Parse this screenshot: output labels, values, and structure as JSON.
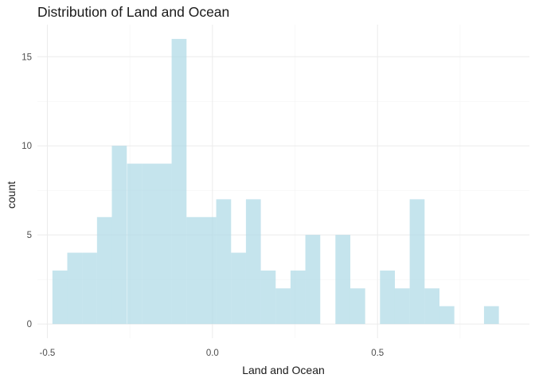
{
  "chart_data": {
    "type": "bar",
    "title": "Distribution of Land and Ocean",
    "xlabel": "Land and Ocean",
    "ylabel": "count",
    "xlim": [
      -0.53,
      0.96
    ],
    "ylim": [
      -0.8,
      16.8
    ],
    "x_ticks": [
      -0.5,
      0.0,
      0.5
    ],
    "x_tick_labels": [
      "-0.5",
      "0.0",
      "0.5"
    ],
    "y_ticks": [
      0,
      5,
      10,
      15
    ],
    "y_tick_labels": [
      "0",
      "5",
      "10",
      "15"
    ],
    "bin_width": 0.0451,
    "bins": [
      {
        "x": -0.462,
        "count": 3
      },
      {
        "x": -0.417,
        "count": 4
      },
      {
        "x": -0.372,
        "count": 4
      },
      {
        "x": -0.327,
        "count": 6
      },
      {
        "x": -0.282,
        "count": 10
      },
      {
        "x": -0.236,
        "count": 9
      },
      {
        "x": -0.191,
        "count": 9
      },
      {
        "x": -0.146,
        "count": 9
      },
      {
        "x": -0.101,
        "count": 16
      },
      {
        "x": -0.056,
        "count": 6
      },
      {
        "x": -0.011,
        "count": 6
      },
      {
        "x": 0.034,
        "count": 7
      },
      {
        "x": 0.079,
        "count": 4
      },
      {
        "x": 0.124,
        "count": 7
      },
      {
        "x": 0.169,
        "count": 3
      },
      {
        "x": 0.214,
        "count": 2
      },
      {
        "x": 0.259,
        "count": 3
      },
      {
        "x": 0.304,
        "count": 5
      },
      {
        "x": 0.349,
        "count": 0
      },
      {
        "x": 0.395,
        "count": 5
      },
      {
        "x": 0.44,
        "count": 2
      },
      {
        "x": 0.485,
        "count": 0
      },
      {
        "x": 0.53,
        "count": 3
      },
      {
        "x": 0.575,
        "count": 2
      },
      {
        "x": 0.62,
        "count": 7
      },
      {
        "x": 0.665,
        "count": 2
      },
      {
        "x": 0.71,
        "count": 1
      },
      {
        "x": 0.755,
        "count": 0
      },
      {
        "x": 0.8,
        "count": 0
      },
      {
        "x": 0.845,
        "count": 1
      }
    ],
    "bar_color": "#add8e6",
    "bar_opacity": 0.7,
    "grid": true,
    "legend": "none"
  }
}
